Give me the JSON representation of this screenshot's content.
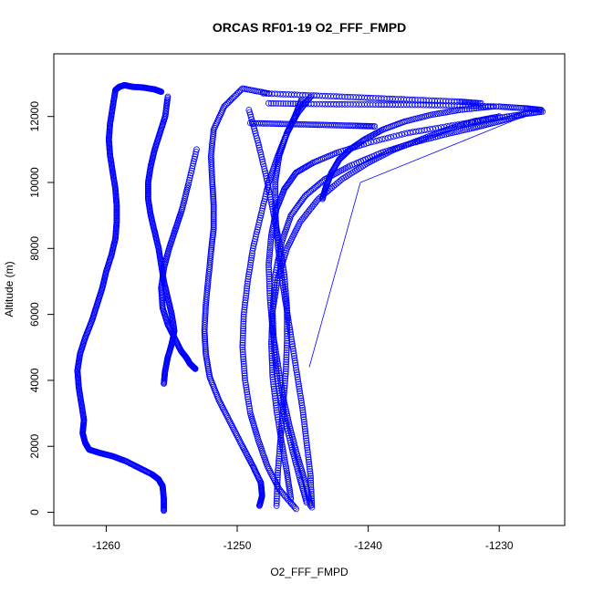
{
  "chart_data": {
    "type": "scatter",
    "title": "ORCAS RF01-19 O2_FFF_FMPD",
    "xlabel": "O2_FFF_FMPD",
    "ylabel": "Altitude (m)",
    "xlim": [
      -1264,
      -1225
    ],
    "ylim": [
      -400,
      13900
    ],
    "xticks": [
      -1260,
      -1250,
      -1240,
      -1230
    ],
    "yticks": [
      0,
      2000,
      4000,
      6000,
      8000,
      10000,
      12000
    ],
    "grid": false,
    "legend": "none",
    "point_color": "#0000ff",
    "marker": "open-circle",
    "series": [
      {
        "x": [
          -1255.6,
          -1255.6,
          -1255.7,
          -1256.0,
          -1256.5,
          -1257.5,
          -1258.5,
          -1259.5,
          -1260.5,
          -1261.3,
          -1261.6,
          -1261.8,
          -1261.7,
          -1261.9,
          -1262.1,
          -1262.2,
          -1262.0,
          -1261.6,
          -1261.1,
          -1260.7,
          -1260.3,
          -1260.0,
          -1259.6,
          -1259.3,
          -1259.2,
          -1259.2,
          -1259.3,
          -1259.5,
          -1259.7,
          -1259.8,
          -1259.7,
          -1259.5,
          -1259.3,
          -1259.0,
          -1258.6,
          -1258.0,
          -1257.2,
          -1256.3,
          -1255.8
        ],
        "y": [
          50,
          400,
          800,
          1000,
          1150,
          1350,
          1550,
          1700,
          1800,
          1900,
          2100,
          2400,
          2800,
          3300,
          3800,
          4300,
          4800,
          5300,
          5800,
          6300,
          6800,
          7300,
          7800,
          8300,
          8800,
          9300,
          9800,
          10300,
          10800,
          11300,
          11800,
          12300,
          12800,
          12900,
          12950,
          12900,
          12880,
          12820,
          12750
        ]
      },
      {
        "x": [
          -1255.6,
          -1255.5,
          -1255.3,
          -1255.0,
          -1254.8,
          -1255.0,
          -1255.3,
          -1255.6,
          -1255.8,
          -1256.0,
          -1256.3,
          -1256.6,
          -1256.8,
          -1256.8,
          -1256.6,
          -1256.3,
          -1255.9,
          -1255.5,
          -1255.3
        ],
        "y": [
          3900,
          4300,
          4700,
          5100,
          5500,
          6000,
          6500,
          7000,
          7500,
          8000,
          8500,
          9000,
          9500,
          10000,
          10500,
          11000,
          11500,
          12000,
          12600
        ]
      },
      {
        "x": [
          -1253.2,
          -1253.6,
          -1253.9,
          -1254.3,
          -1254.8,
          -1255.3,
          -1255.7,
          -1255.8,
          -1255.6,
          -1255.2,
          -1254.7,
          -1254.2,
          -1253.7,
          -1253.1
        ],
        "y": [
          4350,
          4500,
          4700,
          4900,
          5300,
          5700,
          6200,
          6800,
          7400,
          8000,
          8600,
          9200,
          10000,
          11000
        ]
      },
      {
        "x": [
          -1248.3,
          -1248.1,
          -1248.2,
          -1248.8,
          -1249.6,
          -1250.5,
          -1251.4,
          -1252.1,
          -1252.4,
          -1252.5,
          -1252.4,
          -1252.2,
          -1252.0,
          -1251.8,
          -1251.8,
          -1251.9,
          -1252.0,
          -1251.8,
          -1251.0,
          -1249.6,
          -1247.6
        ],
        "y": [
          200,
          500,
          900,
          1400,
          2000,
          2700,
          3400,
          4100,
          4800,
          5500,
          6300,
          7100,
          7900,
          8600,
          9300,
          10000,
          10800,
          11600,
          12300,
          12850,
          12700
        ]
      },
      {
        "x": [
          -1245.5,
          -1246.8,
          -1247.7,
          -1248.4,
          -1249.0,
          -1249.4,
          -1249.6,
          -1249.5,
          -1249.2,
          -1248.8,
          -1248.2,
          -1247.6,
          -1246.9,
          -1246.2,
          -1245.6,
          -1245.1
        ],
        "y": [
          100,
          700,
          1400,
          2200,
          3000,
          4000,
          5000,
          6000,
          7000,
          8000,
          9000,
          10000,
          10800,
          11500,
          12000,
          12500
        ]
      },
      {
        "x": [
          -1244.4,
          -1244.8,
          -1245.4,
          -1246.0,
          -1246.5,
          -1246.9,
          -1247.3,
          -1247.5,
          -1247.6,
          -1247.4,
          -1247.0,
          -1246.4,
          -1245.5,
          -1244.2,
          -1242.4,
          -1240.0,
          -1237.0,
          -1234.0,
          -1231.0,
          -1228.5,
          -1226.7
        ],
        "y": [
          200,
          900,
          1700,
          2600,
          3500,
          4500,
          5500,
          6500,
          7500,
          8400,
          9200,
          9800,
          10300,
          10600,
          10900,
          11200,
          11500,
          11700,
          11900,
          12050,
          12150
        ]
      },
      {
        "x": [
          -1244.7,
          -1245.2,
          -1245.8,
          -1246.4,
          -1246.9,
          -1247.2,
          -1247.3,
          -1247.1,
          -1246.6,
          -1245.9,
          -1244.8,
          -1243.3,
          -1241.4,
          -1239.0,
          -1236.6,
          -1234.2,
          -1232.0,
          -1230.0,
          -1228.2
        ],
        "y": [
          300,
          1000,
          1900,
          2900,
          3900,
          5000,
          6100,
          7200,
          8200,
          9000,
          9600,
          10100,
          10500,
          10900,
          11200,
          11450,
          11650,
          11850,
          12050
        ]
      },
      {
        "x": [
          -1245.9,
          -1246.2,
          -1246.6,
          -1247.0,
          -1247.3,
          -1247.4,
          -1247.3,
          -1246.9,
          -1246.2,
          -1245.2,
          -1243.8,
          -1242.0,
          -1240.0,
          -1238.0,
          -1236.0,
          -1234.0,
          -1232.0,
          -1230.0
        ],
        "y": [
          400,
          1200,
          2100,
          3100,
          4100,
          5100,
          6100,
          7100,
          8000,
          8800,
          9500,
          10100,
          10600,
          11000,
          11300,
          11600,
          11850,
          12000
        ]
      },
      {
        "x": [
          -1247.0,
          -1246.9,
          -1246.7,
          -1246.5,
          -1246.3,
          -1246.2,
          -1246.2,
          -1246.4,
          -1246.8,
          -1247.3,
          -1247.8,
          -1248.4,
          -1249.1
        ],
        "y": [
          200,
          1200,
          2200,
          3200,
          4200,
          5200,
          6200,
          7200,
          8200,
          9200,
          10200,
          11200,
          12200
        ]
      },
      {
        "x": [
          -1244.3,
          -1244.4,
          -1244.7,
          -1245.0,
          -1245.4,
          -1245.8,
          -1246.2,
          -1246.6,
          -1246.9,
          -1247.1,
          -1247.1,
          -1246.8,
          -1246.2,
          -1245.4,
          -1244.4
        ],
        "y": [
          150,
          1100,
          2100,
          3100,
          4100,
          5100,
          6100,
          7100,
          8100,
          9100,
          10000,
          10800,
          11500,
          12100,
          12600
        ]
      },
      {
        "x": [
          -1243.5,
          -1243.2,
          -1242.8,
          -1242.2,
          -1241.4,
          -1240.3,
          -1238.9,
          -1237.2,
          -1235.2,
          -1233.0,
          -1230.5
        ],
        "y": [
          9500,
          9900,
          10300,
          10700,
          11000,
          11300,
          11600,
          11850,
          12050,
          12200,
          12300
        ]
      },
      {
        "x": [
          -1247.6,
          -1245.0,
          -1242.0,
          -1239.0,
          -1236.0,
          -1233.0,
          -1230.0,
          -1228.0,
          -1226.8
        ],
        "y": [
          12400,
          12380,
          12370,
          12360,
          12350,
          12330,
          12300,
          12250,
          12200
        ]
      },
      {
        "x": [
          -1248.0,
          -1245.0,
          -1242.0,
          -1239.0,
          -1236.0,
          -1233.0,
          -1231.4
        ],
        "y": [
          12700,
          12650,
          12600,
          12550,
          12500,
          12450,
          12400
        ]
      },
      {
        "x": [
          -1249.0,
          -1247.0,
          -1245.0,
          -1243.0,
          -1241.0,
          -1239.5
        ],
        "y": [
          11800,
          11780,
          11760,
          11740,
          11720,
          11700
        ]
      }
    ],
    "connector_lines": [
      {
        "x": [
          -1244.5,
          -1240.6,
          -1226.6
        ],
        "y": [
          4400,
          10000,
          12250
        ]
      }
    ]
  }
}
